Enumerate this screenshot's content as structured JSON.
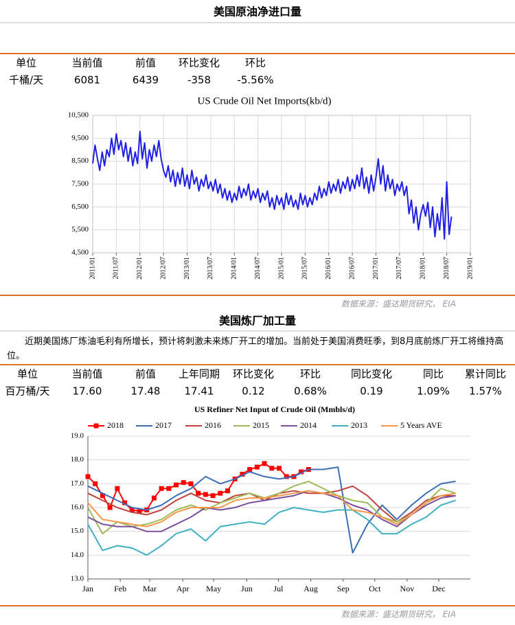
{
  "section1": {
    "title": "美国原油净进口量",
    "table": {
      "headers": [
        "单位",
        "当前值",
        "前值",
        "环比变化",
        "环比"
      ],
      "rows": [
        [
          "千桶/天",
          "6081",
          "6439",
          "-358",
          "-5.56%"
        ]
      ]
    },
    "source": "数据来源：盛达期货研究， EIA"
  },
  "section2": {
    "title": "美国炼厂加工量",
    "text": "近期美国炼厂炼油毛利有所增长，预计将刺激未来炼厂开工的增加。当前处于美国消费旺季，到8月底前炼厂开工将维持高位。",
    "table": {
      "headers": [
        "单位",
        "当前值",
        "前值",
        "上年同期",
        "环比变化",
        "环比",
        "同比变化",
        "同比",
        "累计同比"
      ],
      "rows": [
        [
          "百万桶/天",
          "17.60",
          "17.48",
          "17.41",
          "0.12",
          "0.68%",
          "0.19",
          "1.09%",
          "1.57%"
        ]
      ]
    },
    "source": "数据来源：盛达期货研究， EIA"
  },
  "chart_data": [
    {
      "type": "line",
      "title": "US Crude Oil Net Imports(kb/d)",
      "x": [
        2011.0,
        2011.05,
        2011.1,
        2011.15,
        2011.2,
        2011.25,
        2011.3,
        2011.35,
        2011.4,
        2011.45,
        2011.5,
        2011.55,
        2011.6,
        2011.65,
        2011.7,
        2011.75,
        2011.8,
        2011.85,
        2011.9,
        2011.95,
        2012.0,
        2012.05,
        2012.1,
        2012.15,
        2012.2,
        2012.25,
        2012.3,
        2012.35,
        2012.4,
        2012.45,
        2012.5,
        2012.55,
        2012.6,
        2012.65,
        2012.7,
        2012.75,
        2012.8,
        2012.85,
        2012.9,
        2012.95,
        2013.0,
        2013.05,
        2013.1,
        2013.15,
        2013.2,
        2013.25,
        2013.3,
        2013.35,
        2013.4,
        2013.45,
        2013.5,
        2013.55,
        2013.6,
        2013.65,
        2013.7,
        2013.75,
        2013.8,
        2013.85,
        2013.9,
        2013.95,
        2014.0,
        2014.05,
        2014.1,
        2014.15,
        2014.2,
        2014.25,
        2014.3,
        2014.35,
        2014.4,
        2014.45,
        2014.5,
        2014.55,
        2014.6,
        2014.65,
        2014.7,
        2014.75,
        2014.8,
        2014.85,
        2014.9,
        2014.95,
        2015.0,
        2015.05,
        2015.1,
        2015.15,
        2015.2,
        2015.25,
        2015.3,
        2015.35,
        2015.4,
        2015.45,
        2015.5,
        2015.55,
        2015.6,
        2015.65,
        2015.7,
        2015.75,
        2015.8,
        2015.85,
        2015.9,
        2015.95,
        2016.0,
        2016.05,
        2016.1,
        2016.15,
        2016.2,
        2016.25,
        2016.3,
        2016.35,
        2016.4,
        2016.45,
        2016.5,
        2016.55,
        2016.6,
        2016.65,
        2016.7,
        2016.75,
        2016.8,
        2016.85,
        2016.9,
        2016.95,
        2017.0,
        2017.05,
        2017.1,
        2017.15,
        2017.2,
        2017.25,
        2017.3,
        2017.35,
        2017.4,
        2017.45,
        2017.5,
        2017.55,
        2017.6,
        2017.65,
        2017.7,
        2017.75,
        2017.8,
        2017.85,
        2017.9,
        2017.95,
        2018.0,
        2018.05,
        2018.1,
        2018.15,
        2018.2,
        2018.25,
        2018.3,
        2018.35,
        2018.4,
        2018.45,
        2018.5,
        2018.55,
        2018.6
      ],
      "series": [
        {
          "name": "Net Imports",
          "color": "#1f1fe6",
          "values": [
            8400,
            9200,
            8600,
            8100,
            8900,
            8300,
            9000,
            8700,
            9500,
            8800,
            9700,
            9000,
            9400,
            8700,
            9300,
            8500,
            9100,
            8300,
            8900,
            8400,
            9800,
            8600,
            9300,
            8200,
            9000,
            8500,
            9200,
            8700,
            9400,
            8600,
            8100,
            7800,
            8300,
            7600,
            8100,
            7400,
            8000,
            7500,
            8200,
            7400,
            7900,
            7300,
            8100,
            7500,
            7800,
            7200,
            7700,
            7400,
            7900,
            7300,
            7600,
            7200,
            7700,
            7100,
            7500,
            6900,
            7300,
            6800,
            7200,
            6700,
            7100,
            6800,
            7400,
            6900,
            7300,
            7000,
            7500,
            6800,
            7200,
            6900,
            7300,
            6700,
            7100,
            6800,
            7200,
            6500,
            6900,
            6400,
            7000,
            6600,
            6900,
            6400,
            7100,
            6600,
            7000,
            6500,
            6800,
            6400,
            7100,
            6600,
            7000,
            6500,
            6900,
            6600,
            7100,
            6800,
            7400,
            6900,
            7300,
            7000,
            7600,
            7100,
            7500,
            7200,
            7700,
            7100,
            7600,
            7300,
            7800,
            7200,
            7700,
            7300,
            7900,
            7400,
            8200,
            7300,
            7800,
            7100,
            7900,
            7200,
            7800,
            8600,
            7500,
            8300,
            7200,
            7900,
            7300,
            7700,
            7000,
            7500,
            7200,
            7600,
            7000,
            7400,
            6200,
            6800,
            5800,
            6500,
            5500,
            6200,
            6600,
            6100,
            6700,
            5600,
            6500,
            5200,
            6200,
            5500,
            6900,
            5100,
            7600,
            5300,
            6081
          ]
        }
      ],
      "xlim": [
        2011,
        2019
      ],
      "xticks": [
        {
          "value": 2011,
          "label": "2011/01"
        },
        {
          "value": 2011.5,
          "label": "2011/07"
        },
        {
          "value": 2012,
          "label": "2012/01"
        },
        {
          "value": 2012.5,
          "label": "2012/07"
        },
        {
          "value": 2013,
          "label": "2013/01"
        },
        {
          "value": 2013.5,
          "label": "2013/07"
        },
        {
          "value": 2014,
          "label": "2014/01"
        },
        {
          "value": 2014.5,
          "label": "2014/07"
        },
        {
          "value": 2015,
          "label": "2015/01"
        },
        {
          "value": 2015.5,
          "label": "2015/07"
        },
        {
          "value": 2016,
          "label": "2016/01"
        },
        {
          "value": 2016.5,
          "label": "2016/07"
        },
        {
          "value": 2017,
          "label": "2017/01"
        },
        {
          "value": 2017.5,
          "label": "2017/07"
        },
        {
          "value": 2018,
          "label": "2018/01"
        },
        {
          "value": 2018.5,
          "label": "2018/07"
        },
        {
          "value": 2019,
          "label": "2019/01"
        }
      ],
      "ylim": [
        4500,
        10500
      ],
      "yticks": [
        {
          "value": 4500,
          "label": "4,500"
        },
        {
          "value": 5500,
          "label": "5,500"
        },
        {
          "value": 6500,
          "label": "6,500"
        },
        {
          "value": 7500,
          "label": "7,500"
        },
        {
          "value": 8500,
          "label": "8,500"
        },
        {
          "value": 9500,
          "label": "9,500"
        },
        {
          "value": 10500,
          "label": "10,500"
        }
      ],
      "grid": "both",
      "legend": false
    },
    {
      "type": "line",
      "title": "US Refiner Net Input of Crude Oil (Mmbls/d)",
      "x": [
        1,
        3,
        5,
        7,
        9,
        11,
        13,
        15,
        17,
        19,
        21,
        23,
        25,
        27,
        29,
        31,
        33,
        35,
        37,
        39,
        41,
        43,
        45,
        47,
        49,
        51
      ],
      "series": [
        {
          "name": "2018",
          "color": "#ff0000",
          "marker": "square",
          "x": [
            1,
            2,
            3,
            4,
            5,
            6,
            7,
            8,
            9,
            10,
            11,
            12,
            13,
            14,
            15,
            16,
            17,
            18,
            19,
            20,
            21,
            22,
            23,
            24,
            25,
            26,
            27,
            28,
            29,
            30,
            31
          ],
          "values": [
            17.3,
            17.0,
            16.5,
            16.0,
            16.8,
            16.2,
            15.9,
            15.85,
            15.9,
            16.4,
            16.8,
            16.8,
            16.95,
            17.05,
            17.0,
            16.6,
            16.55,
            16.5,
            16.6,
            16.7,
            17.2,
            17.4,
            17.6,
            17.7,
            17.85,
            17.65,
            17.65,
            17.3,
            17.3,
            17.5,
            17.6
          ]
        },
        {
          "name": "2017",
          "color": "#3a6fb5",
          "values": [
            16.9,
            16.6,
            16.3,
            16.0,
            15.9,
            16.1,
            16.5,
            16.8,
            17.3,
            17.0,
            17.2,
            17.5,
            17.3,
            17.2,
            17.3,
            17.6,
            17.6,
            17.7,
            14.1,
            15.3,
            16.1,
            15.5,
            16.1,
            16.6,
            17.0,
            17.1
          ]
        },
        {
          "name": "2016",
          "color": "#c0403c",
          "values": [
            16.6,
            16.3,
            16.0,
            15.8,
            15.7,
            15.9,
            16.3,
            16.6,
            16.3,
            16.2,
            16.5,
            16.6,
            16.3,
            16.6,
            16.7,
            16.6,
            16.6,
            16.7,
            16.9,
            16.5,
            15.9,
            15.4,
            15.8,
            16.3,
            16.5,
            16.5
          ]
        },
        {
          "name": "2015",
          "color": "#9bbb59",
          "values": [
            16.0,
            14.9,
            15.4,
            15.2,
            15.3,
            15.5,
            15.9,
            16.1,
            15.9,
            16.2,
            16.4,
            16.6,
            16.4,
            16.6,
            16.9,
            17.1,
            16.8,
            16.5,
            16.3,
            16.2,
            15.6,
            15.4,
            15.7,
            16.2,
            16.8,
            16.6
          ]
        },
        {
          "name": "2014",
          "color": "#7a4f9e",
          "values": [
            15.6,
            15.3,
            15.2,
            15.2,
            15.0,
            15.0,
            15.3,
            15.6,
            16.0,
            15.9,
            16.0,
            16.2,
            16.3,
            16.4,
            16.5,
            16.7,
            16.6,
            16.4,
            16.1,
            15.9,
            15.5,
            15.2,
            15.7,
            16.1,
            16.4,
            16.5
          ]
        },
        {
          "name": "2013",
          "color": "#3fb0c4",
          "values": [
            15.3,
            14.2,
            14.4,
            14.3,
            14.0,
            14.4,
            14.9,
            15.1,
            14.6,
            15.2,
            15.3,
            15.4,
            15.3,
            15.8,
            16.0,
            15.9,
            15.8,
            15.9,
            15.9,
            15.5,
            14.9,
            14.9,
            15.3,
            15.6,
            16.1,
            16.3
          ]
        },
        {
          "name": "5 Years AVE",
          "color": "#f79646",
          "values": [
            16.2,
            15.5,
            15.4,
            15.3,
            15.2,
            15.4,
            15.8,
            16.0,
            16.0,
            16.0,
            16.3,
            16.4,
            16.4,
            16.5,
            16.6,
            16.7,
            16.6,
            16.5,
            15.9,
            15.8,
            15.6,
            15.3,
            15.7,
            16.2,
            16.5,
            16.6
          ]
        }
      ],
      "xlim": [
        1,
        53
      ],
      "xticks": [
        {
          "value": 1,
          "label": "Jan"
        },
        {
          "value": 5.4,
          "label": "Feb"
        },
        {
          "value": 9.4,
          "label": "Mar"
        },
        {
          "value": 13.9,
          "label": "Apr"
        },
        {
          "value": 18.1,
          "label": "May"
        },
        {
          "value": 22.6,
          "label": "Jun"
        },
        {
          "value": 26.9,
          "label": "Jul"
        },
        {
          "value": 31.3,
          "label": "Aug"
        },
        {
          "value": 35.7,
          "label": "Sep"
        },
        {
          "value": 40,
          "label": "Oct"
        },
        {
          "value": 44.4,
          "label": "Nov"
        },
        {
          "value": 48.7,
          "label": "Dec"
        }
      ],
      "ylim": [
        13,
        19
      ],
      "yticks": [
        {
          "value": 13,
          "label": "13.0"
        },
        {
          "value": 14,
          "label": "14.0"
        },
        {
          "value": 15,
          "label": "15.0"
        },
        {
          "value": 16,
          "label": "16.0"
        },
        {
          "value": 17,
          "label": "17.0"
        },
        {
          "value": 18,
          "label": "18.0"
        },
        {
          "value": 19,
          "label": "19.0"
        }
      ],
      "grid": "y",
      "legend": "top"
    }
  ]
}
